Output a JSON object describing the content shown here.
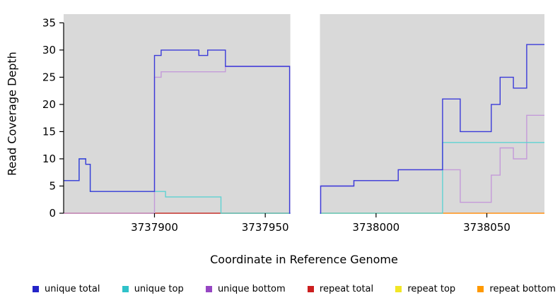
{
  "chart_data": {
    "type": "line",
    "step": true,
    "title": "",
    "xlabel": "Coordinate in Reference Genome",
    "ylabel": "Read Coverage Depth",
    "xlim": [
      3737859,
      3738076
    ],
    "ylim": [
      0,
      36.6
    ],
    "xticks": [
      3737900,
      3737950,
      3738000,
      3738050
    ],
    "yticks": [
      0,
      5,
      10,
      15,
      20,
      25,
      30,
      35
    ],
    "grid": "off",
    "plot_background": "#d9d9d9",
    "masked_region": {
      "x0": 3737961,
      "x1": 3737975,
      "color": "#ffffff"
    },
    "series": [
      {
        "name": "repeat top",
        "color": "#f0e916",
        "points": [
          [
            3737859,
            0
          ],
          [
            3737961,
            0
          ]
        ]
      },
      {
        "name": "repeat total",
        "color": "#c4304e",
        "points": [
          [
            3737859,
            0
          ],
          [
            3737961,
            0
          ]
        ]
      },
      {
        "name": "repeat bottom",
        "color": "#ff9114",
        "points": [
          [
            3737975,
            0
          ],
          [
            3738076,
            0
          ]
        ]
      },
      {
        "name": "unique bottom",
        "color": "#c49ad9",
        "points": [
          [
            3737859,
            0
          ],
          [
            3737900,
            25
          ],
          [
            3737903,
            26
          ],
          [
            3737932,
            27
          ],
          [
            3737961,
            0
          ],
          [
            3737975,
            5
          ],
          [
            3737990,
            6
          ],
          [
            3738010,
            8
          ],
          [
            3738038,
            2
          ],
          [
            3738052,
            7
          ],
          [
            3738056,
            12
          ],
          [
            3738062,
            10
          ],
          [
            3738068,
            18
          ],
          [
            3738076,
            18
          ]
        ]
      },
      {
        "name": "unique top",
        "color": "#5fd2d2",
        "points": [
          [
            3737859,
            6
          ],
          [
            3737866,
            10
          ],
          [
            3737869,
            9
          ],
          [
            3737871,
            4
          ],
          [
            3737905,
            3
          ],
          [
            3737930,
            0
          ],
          [
            3738030,
            13
          ],
          [
            3738076,
            13
          ]
        ]
      },
      {
        "name": "unique total",
        "color": "#3a3ad9",
        "points": [
          [
            3737859,
            6
          ],
          [
            3737866,
            10
          ],
          [
            3737869,
            9
          ],
          [
            3737871,
            4
          ],
          [
            3737900,
            29
          ],
          [
            3737903,
            30
          ],
          [
            3737920,
            29
          ],
          [
            3737924,
            30
          ],
          [
            3737932,
            27
          ],
          [
            3737961,
            0
          ],
          [
            3737975,
            5
          ],
          [
            3737990,
            6
          ],
          [
            3738010,
            8
          ],
          [
            3738030,
            21
          ],
          [
            3738038,
            15
          ],
          [
            3738052,
            20
          ],
          [
            3738056,
            25
          ],
          [
            3738062,
            23
          ],
          [
            3738068,
            31
          ],
          [
            3738076,
            31
          ]
        ]
      }
    ],
    "legend": [
      {
        "label": "unique total",
        "color": "#2424c8"
      },
      {
        "label": "unique top",
        "color": "#2fc2c9"
      },
      {
        "label": "unique bottom",
        "color": "#9646c3"
      },
      {
        "label": "repeat total",
        "color": "#cc1f1f"
      },
      {
        "label": "repeat top",
        "color": "#f2e626"
      },
      {
        "label": "repeat bottom",
        "color": "#ff9900"
      }
    ],
    "legend_position": "bottom"
  }
}
